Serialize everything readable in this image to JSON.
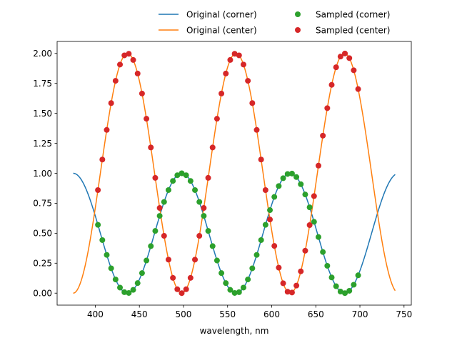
{
  "chart_data": {
    "type": "line",
    "title": "",
    "xlabel": "wavelength, nm",
    "ylabel": "",
    "xlim": [
      356.75,
      758.25
    ],
    "ylim": [
      -0.1,
      2.1
    ],
    "xticks": [
      400,
      450,
      500,
      550,
      600,
      650,
      700,
      750
    ],
    "yticks": [
      0.0,
      0.25,
      0.5,
      0.75,
      1.0,
      1.25,
      1.5,
      1.75,
      2.0
    ],
    "ytick_labels": [
      "0.00",
      "0.25",
      "0.50",
      "0.75",
      "1.00",
      "1.25",
      "1.50",
      "1.75",
      "2.00"
    ],
    "grid": false,
    "legend_placement": "top-center (above axes)",
    "model": {
      "corner": "0.5 + 0.5*cos(2*pi*(x-375)/123)",
      "center": "1 - cos(2*pi*(x-375)/123)",
      "x_range": [
        375,
        740
      ]
    },
    "series": [
      {
        "name": "Original (corner)",
        "kind": "line",
        "color": "#1f77b4",
        "style": "solid"
      },
      {
        "name": "Original (center)",
        "kind": "line",
        "color": "#ff7f0e",
        "style": "solid"
      },
      {
        "name": "Sampled (corner)",
        "kind": "markers",
        "color": "#2ca02c",
        "marker": "circle",
        "x": [
          403,
          408,
          413,
          418,
          423,
          428,
          433,
          438,
          443,
          448,
          453,
          458,
          463,
          468,
          473,
          478,
          483,
          488,
          493,
          498,
          503,
          508,
          513,
          518,
          523,
          528,
          533,
          538,
          543,
          548,
          553,
          558,
          563,
          568,
          573,
          578,
          583,
          588,
          593,
          598,
          603,
          608,
          613,
          618,
          623,
          628,
          633,
          638,
          643,
          648,
          653,
          658,
          663,
          668,
          673,
          678,
          683,
          688,
          693,
          698
        ]
      },
      {
        "name": "Sampled (center)",
        "kind": "markers",
        "color": "#d62728",
        "marker": "circle",
        "x": [
          403,
          408,
          413,
          418,
          423,
          428,
          433,
          438,
          443,
          448,
          453,
          458,
          463,
          468,
          473,
          478,
          483,
          488,
          493,
          498,
          503,
          508,
          513,
          518,
          523,
          528,
          533,
          538,
          543,
          548,
          553,
          558,
          563,
          568,
          573,
          578,
          583,
          588,
          593,
          598,
          603,
          608,
          613,
          618,
          623,
          628,
          633,
          638,
          643,
          648,
          653,
          658,
          663,
          668,
          673,
          678,
          683,
          688,
          693,
          698
        ]
      }
    ]
  }
}
